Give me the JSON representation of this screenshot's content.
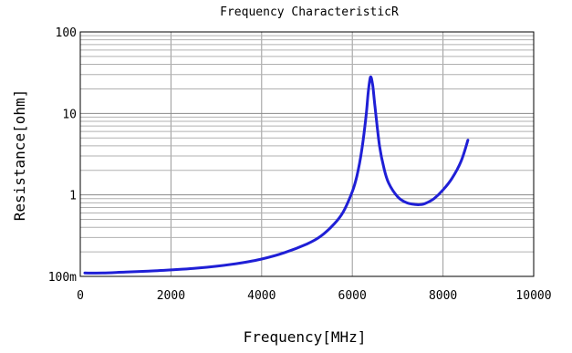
{
  "chart_data": {
    "type": "line",
    "title": "Frequency  CharacteristicR",
    "xlabel": "Frequency[MHz]",
    "ylabel": "Resistance[ohm]",
    "x_scale": "linear",
    "y_scale": "log",
    "xlim": [
      0,
      10000
    ],
    "ylim": [
      0.1,
      100
    ],
    "x_ticks": [
      0,
      2000,
      4000,
      6000,
      8000,
      10000
    ],
    "x_tick_labels": [
      "0",
      "2000",
      "4000",
      "6000",
      "8000",
      "10000"
    ],
    "y_ticks": [
      0.1,
      1,
      10,
      100
    ],
    "y_tick_labels": [
      "100m",
      "1",
      "10",
      "100"
    ],
    "grid": true,
    "line_color": "#1f1fd6",
    "series": [
      {
        "x": [
          100,
          500,
          1000,
          1500,
          2000,
          2500,
          3000,
          3500,
          4000,
          4500,
          5000,
          5300,
          5600,
          5800,
          6000,
          6100,
          6200,
          6300,
          6350,
          6400,
          6450,
          6500,
          6600,
          6700,
          6800,
          7000,
          7200,
          7400,
          7500,
          7600,
          7800,
          8000,
          8200,
          8400,
          8550
        ],
        "y": [
          0.11,
          0.11,
          0.113,
          0.116,
          0.12,
          0.125,
          0.133,
          0.145,
          0.163,
          0.195,
          0.25,
          0.31,
          0.44,
          0.62,
          1.1,
          1.7,
          3.3,
          9.0,
          18,
          28,
          22,
          12,
          4.0,
          2.1,
          1.4,
          0.95,
          0.8,
          0.76,
          0.76,
          0.78,
          0.9,
          1.15,
          1.6,
          2.6,
          4.7
        ]
      }
    ]
  }
}
